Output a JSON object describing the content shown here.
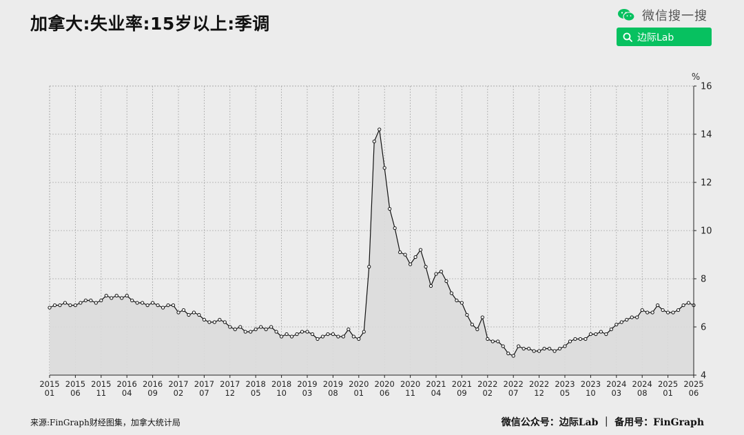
{
  "title": "加拿大:失业率:15岁以上:季调",
  "header": {
    "wechat_text": "微信搜一搜",
    "search_label": "边际Lab",
    "wechat_icon": "wechat-icon",
    "search_icon": "search-icon"
  },
  "footer": {
    "source": "来源:FinGraph财经图集，加拿大统计局",
    "credit": "微信公众号：边际Lab ｜ 备用号：FinGraph"
  },
  "colors": {
    "wechat_green": "#07c160",
    "line": "#111111",
    "area": "#dcdcdc"
  },
  "chart_data": {
    "type": "line",
    "ylabel": "%",
    "ylim": [
      4,
      16
    ],
    "yticks": [
      4,
      6,
      8,
      10,
      12,
      14,
      16
    ],
    "y_axis_position": "right",
    "grid": true,
    "area_fill": true,
    "x_start": "2015-01",
    "x_end": "2025-06",
    "xticks": [
      {
        "year": "2015",
        "month": "01"
      },
      {
        "year": "2015",
        "month": "06"
      },
      {
        "year": "2015",
        "month": "11"
      },
      {
        "year": "2016",
        "month": "04"
      },
      {
        "year": "2016",
        "month": "09"
      },
      {
        "year": "2017",
        "month": "02"
      },
      {
        "year": "2017",
        "month": "07"
      },
      {
        "year": "2017",
        "month": "12"
      },
      {
        "year": "2018",
        "month": "05"
      },
      {
        "year": "2018",
        "month": "10"
      },
      {
        "year": "2019",
        "month": "03"
      },
      {
        "year": "2019",
        "month": "08"
      },
      {
        "year": "2020",
        "month": "01"
      },
      {
        "year": "2020",
        "month": "06"
      },
      {
        "year": "2020",
        "month": "11"
      },
      {
        "year": "2021",
        "month": "04"
      },
      {
        "year": "2021",
        "month": "09"
      },
      {
        "year": "2022",
        "month": "02"
      },
      {
        "year": "2022",
        "month": "07"
      },
      {
        "year": "2022",
        "month": "12"
      },
      {
        "year": "2023",
        "month": "05"
      },
      {
        "year": "2023",
        "month": "10"
      },
      {
        "year": "2024",
        "month": "03"
      },
      {
        "year": "2024",
        "month": "08"
      },
      {
        "year": "2025",
        "month": "01"
      },
      {
        "year": "2025",
        "month": "06"
      }
    ],
    "series": [
      {
        "values": [
          6.8,
          6.9,
          6.9,
          7.0,
          6.9,
          6.9,
          7.0,
          7.1,
          7.1,
          7.0,
          7.1,
          7.3,
          7.2,
          7.3,
          7.2,
          7.3,
          7.1,
          7.0,
          7.0,
          6.9,
          7.0,
          6.9,
          6.8,
          6.9,
          6.9,
          6.6,
          6.7,
          6.5,
          6.6,
          6.5,
          6.3,
          6.2,
          6.2,
          6.3,
          6.2,
          6.0,
          5.9,
          6.0,
          5.8,
          5.8,
          5.9,
          6.0,
          5.9,
          6.0,
          5.8,
          5.6,
          5.7,
          5.6,
          5.7,
          5.8,
          5.8,
          5.7,
          5.5,
          5.6,
          5.7,
          5.7,
          5.6,
          5.6,
          5.9,
          5.6,
          5.5,
          5.8,
          8.5,
          13.7,
          14.2,
          12.6,
          10.9,
          10.1,
          9.1,
          9.0,
          8.6,
          8.9,
          9.2,
          8.5,
          7.7,
          8.2,
          8.3,
          7.9,
          7.4,
          7.1,
          7.0,
          6.5,
          6.1,
          5.9,
          6.4,
          5.5,
          5.4,
          5.4,
          5.2,
          4.9,
          4.8,
          5.2,
          5.1,
          5.1,
          5.0,
          5.0,
          5.1,
          5.1,
          5.0,
          5.1,
          5.2,
          5.4,
          5.5,
          5.5,
          5.5,
          5.7,
          5.7,
          5.8,
          5.7,
          5.9,
          6.1,
          6.2,
          6.3,
          6.4,
          6.4,
          6.7,
          6.6,
          6.6,
          6.9,
          6.7,
          6.6,
          6.6,
          6.7,
          6.9,
          7.0,
          6.9
        ]
      }
    ]
  }
}
